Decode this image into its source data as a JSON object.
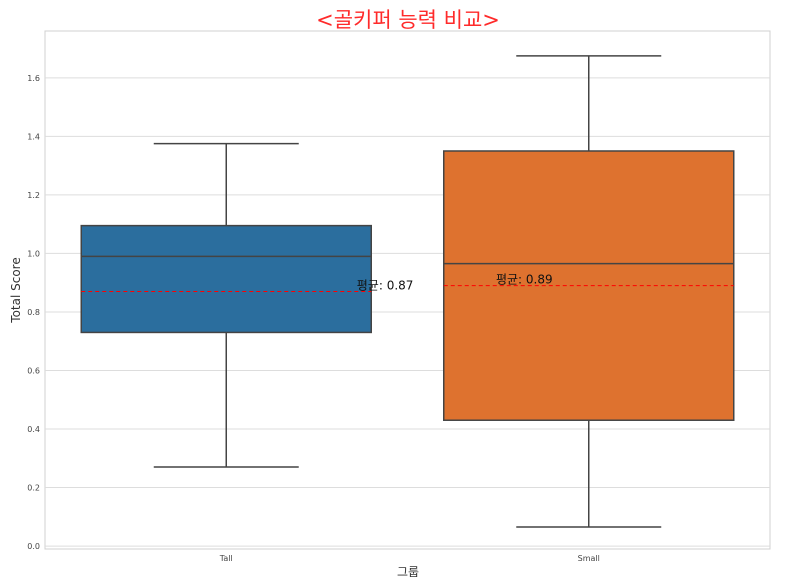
{
  "chart_data": {
    "type": "box",
    "title": "<골키퍼 능력 비교>",
    "title_color": "#ff2a2a",
    "xlabel": "그룹",
    "ylabel": "Total Score",
    "ylim": [
      -0.01,
      1.76
    ],
    "yticks": [
      0.0,
      0.2,
      0.4,
      0.6,
      0.8,
      1.0,
      1.2,
      1.4,
      1.6
    ],
    "ytick_labels": [
      "0.0",
      "0.2",
      "0.4",
      "0.6",
      "0.8",
      "1.0",
      "1.2",
      "1.4",
      "1.6"
    ],
    "grid": true,
    "categories": [
      "Tall",
      "Small"
    ],
    "boxes": [
      {
        "category": "Tall",
        "whisker_low": 0.27,
        "q1": 0.73,
        "median": 0.99,
        "q3": 1.095,
        "whisker_high": 1.375,
        "mean": 0.87,
        "mean_label": "평균: 0.87",
        "color": "#2b6e9e"
      },
      {
        "category": "Small",
        "whisker_low": 0.065,
        "q1": 0.43,
        "median": 0.965,
        "q3": 1.35,
        "whisker_high": 1.675,
        "mean": 0.89,
        "mean_label": "평균: 0.89",
        "color": "#de722f"
      }
    ],
    "mean_line_color": "#ff0000",
    "line_color": "#444444",
    "grid_color": "#dddddd"
  }
}
